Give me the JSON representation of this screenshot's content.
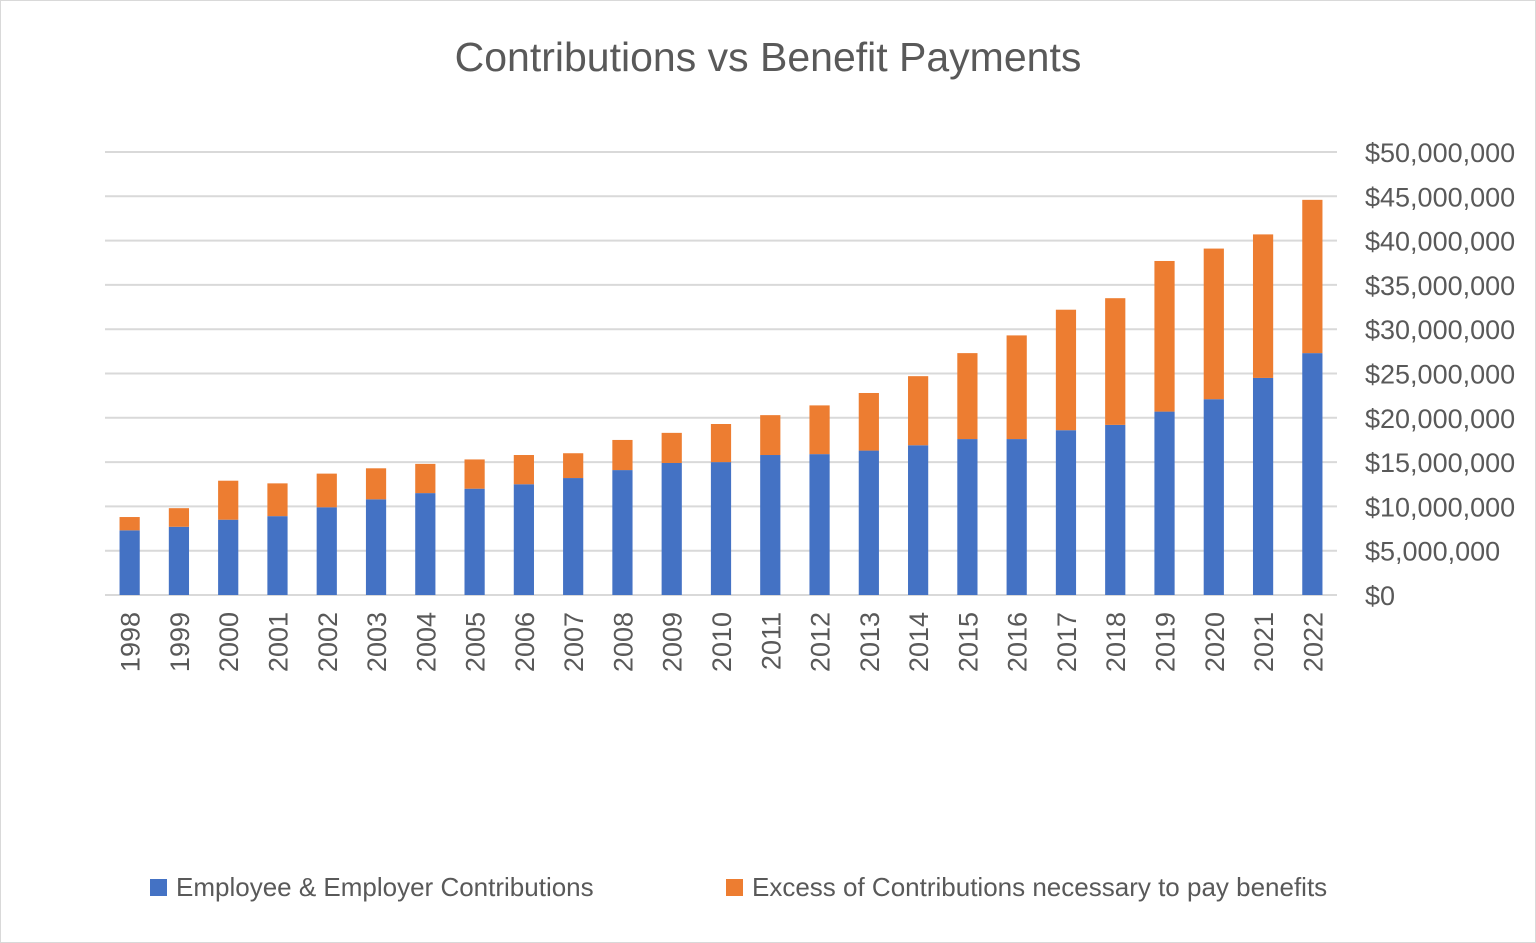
{
  "chart_data": {
    "type": "bar",
    "stacked": true,
    "title": "Contributions vs Benefit Payments",
    "xlabel": "",
    "ylabel": "",
    "ylim": [
      0,
      50000000
    ],
    "y_axis_position": "right",
    "y_ticks": [
      "$0",
      "$5,000,000",
      "$10,000,000",
      "$15,000,000",
      "$20,000,000",
      "$25,000,000",
      "$30,000,000",
      "$35,000,000",
      "$40,000,000",
      "$45,000,000",
      "$50,000,000"
    ],
    "y_tick_values": [
      0,
      5000000,
      10000000,
      15000000,
      20000000,
      25000000,
      30000000,
      35000000,
      40000000,
      45000000,
      50000000
    ],
    "grid": true,
    "legend_position": "bottom",
    "categories": [
      "1998",
      "1999",
      "2000",
      "2001",
      "2002",
      "2003",
      "2004",
      "2005",
      "2006",
      "2007",
      "2008",
      "2009",
      "2010",
      "2011",
      "2012",
      "2013",
      "2014",
      "2015",
      "2016",
      "2017",
      "2018",
      "2019",
      "2020",
      "2021",
      "2022"
    ],
    "series": [
      {
        "name": "Employee & Employer Contributions",
        "color": "#4472c4",
        "values": [
          7300000,
          7700000,
          8500000,
          8900000,
          9900000,
          10800000,
          11500000,
          12000000,
          12500000,
          13200000,
          14100000,
          14900000,
          15000000,
          15800000,
          15900000,
          16300000,
          16900000,
          17600000,
          17600000,
          18600000,
          19200000,
          20700000,
          22100000,
          24500000,
          27300000
        ]
      },
      {
        "name": "Excess of Contributions necessary to pay benefits",
        "color": "#ed7d31",
        "values": [
          1500000,
          2100000,
          4400000,
          3700000,
          3800000,
          3500000,
          3300000,
          3300000,
          3300000,
          2800000,
          3400000,
          3400000,
          4300000,
          4500000,
          5500000,
          6500000,
          7800000,
          9700000,
          11700000,
          13600000,
          14300000,
          17000000,
          17000000,
          16200000,
          17300000
        ]
      }
    ]
  }
}
